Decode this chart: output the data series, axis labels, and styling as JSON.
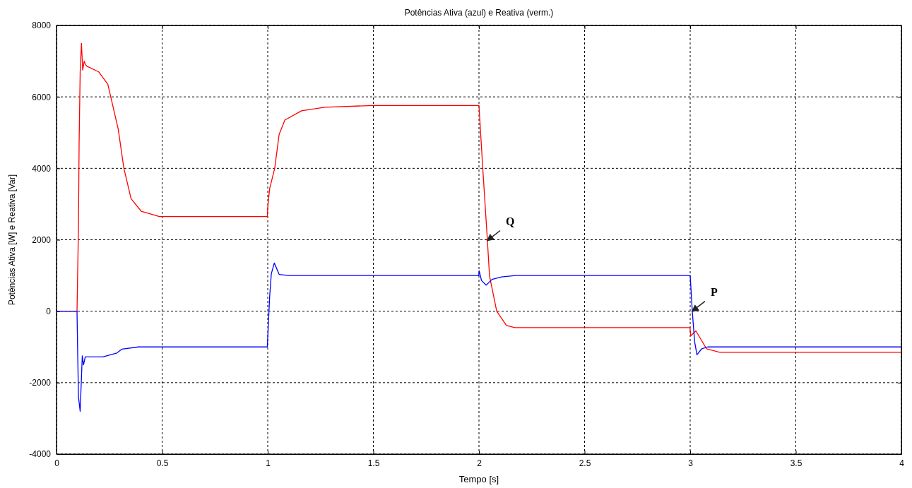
{
  "chart_data": {
    "type": "line",
    "title": "Potências Ativa (azul) e Reativa (verm.)",
    "xlabel": "Tempo [s]",
    "ylabel": "Potências Ativa [W] e Reativa [Var]",
    "xlim": [
      0,
      4
    ],
    "ylim": [
      -4000,
      8000
    ],
    "xticks": [
      0,
      0.5,
      1,
      1.5,
      2,
      2.5,
      3,
      3.5,
      4
    ],
    "yticks": [
      -4000,
      -2000,
      0,
      2000,
      4000,
      6000,
      8000
    ],
    "grid": true,
    "line_style": "solid",
    "marker": "none",
    "series": [
      {
        "color": "#ff0000",
        "x": [
          0,
          0.097,
          0.104,
          0.107,
          0.112,
          0.118,
          0.124,
          0.131,
          0.137,
          0.146,
          0.2,
          0.243,
          0.292,
          0.319,
          0.353,
          0.401,
          0.487,
          0.55,
          0.998,
          1.0,
          1.009,
          1.033,
          1.054,
          1.081,
          1.16,
          1.27,
          1.5,
          1.999,
          2.0,
          2.018,
          2.04,
          2.05,
          2.084,
          2.13,
          2.17,
          2.999,
          3.003,
          3.027,
          3.077,
          3.14,
          4
        ],
        "values": [
          0,
          0,
          2400,
          4700,
          6700,
          7500,
          6750,
          7000,
          6900,
          6850,
          6700,
          6350,
          5100,
          4000,
          3150,
          2800,
          2650,
          2650,
          2650,
          2900,
          3430,
          4000,
          4950,
          5350,
          5610,
          5710,
          5760,
          5760,
          5760,
          4000,
          1980,
          990,
          0,
          -400,
          -460,
          -460,
          -690,
          -550,
          -1050,
          -1150,
          -1150
        ]
      },
      {
        "color": "#0000ff",
        "x": [
          0,
          0.097,
          0.1,
          0.104,
          0.112,
          0.122,
          0.128,
          0.136,
          0.219,
          0.286,
          0.31,
          0.388,
          0.998,
          1.009,
          1.017,
          1.031,
          1.054,
          1.1,
          1.999,
          2.001,
          2.012,
          2.034,
          2.062,
          2.107,
          2.174,
          3.0,
          3.01,
          3.021,
          3.032,
          3.055,
          3.083,
          4
        ],
        "values": [
          0,
          0,
          -1100,
          -2400,
          -2800,
          -1250,
          -1500,
          -1280,
          -1280,
          -1170,
          -1060,
          -1000,
          -1000,
          400,
          1050,
          1350,
          1030,
          1000,
          1000,
          1130,
          860,
          730,
          890,
          960,
          1000,
          1000,
          0,
          -850,
          -1220,
          -1050,
          -1000,
          -1000
        ]
      }
    ],
    "annotations": [
      {
        "text": "Q",
        "x": 2.04,
        "y": 1980
      },
      {
        "text": "P",
        "x": 3.01,
        "y": 0
      }
    ]
  }
}
